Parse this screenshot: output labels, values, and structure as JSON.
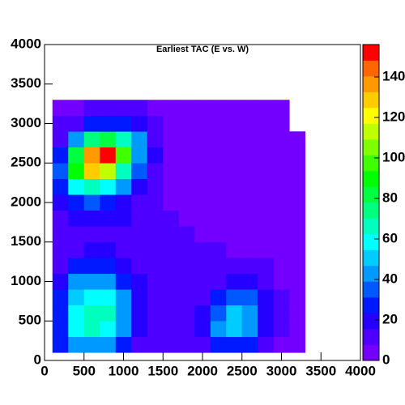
{
  "chart_data": {
    "type": "heatmap",
    "title": "Earliest TAC (E vs. W)",
    "xlim": [
      0,
      4000
    ],
    "ylim": [
      0,
      4000
    ],
    "zlim": [
      0,
      156
    ],
    "xticks": [
      0,
      500,
      1000,
      1500,
      2000,
      2500,
      3000,
      3500,
      4000
    ],
    "yticks": [
      0,
      500,
      1000,
      1500,
      2000,
      2500,
      3000,
      3500,
      4000
    ],
    "zticks": [
      0,
      20,
      40,
      60,
      80,
      100,
      120,
      140
    ],
    "palette": [
      "#7300ff",
      "#4d00ff",
      "#2600ff",
      "#0019ff",
      "#0059ff",
      "#0099ff",
      "#00ccff",
      "#00ffff",
      "#00ffbf",
      "#00ff80",
      "#00ff40",
      "#00ff00",
      "#40ff00",
      "#80ff00",
      "#bfff00",
      "#ffff00",
      "#ffcc00",
      "#ff9900",
      "#ff6600",
      "#ff0000"
    ],
    "x_bins": [
      100,
      300,
      500,
      700,
      900,
      1100,
      1300,
      1500,
      1700,
      1900,
      2100,
      2300,
      2500,
      2700,
      2900,
      3100,
      3300
    ],
    "y_bins": [
      100,
      300,
      500,
      700,
      900,
      1100,
      1300,
      1500,
      1700,
      1900,
      2100,
      2300,
      2500,
      2700,
      2900,
      3100,
      3300
    ],
    "z": [
      [
        25,
        40,
        45,
        40,
        30,
        15,
        10,
        8,
        8,
        12,
        25,
        30,
        25,
        15,
        6,
        3
      ],
      [
        30,
        55,
        65,
        60,
        45,
        20,
        12,
        9,
        10,
        20,
        40,
        50,
        40,
        20,
        8,
        3
      ],
      [
        30,
        60,
        70,
        65,
        45,
        22,
        12,
        9,
        10,
        18,
        38,
        50,
        45,
        22,
        8,
        3
      ],
      [
        28,
        50,
        60,
        55,
        40,
        20,
        12,
        10,
        10,
        14,
        25,
        35,
        32,
        18,
        8,
        3
      ],
      [
        22,
        40,
        45,
        40,
        30,
        18,
        13,
        11,
        10,
        11,
        15,
        20,
        18,
        12,
        6,
        3
      ],
      [
        15,
        25,
        28,
        25,
        20,
        15,
        13,
        12,
        10,
        10,
        10,
        10,
        9,
        8,
        5,
        2
      ],
      [
        12,
        15,
        16,
        16,
        15,
        14,
        13,
        12,
        10,
        9,
        8,
        7,
        6,
        5,
        4,
        2
      ],
      [
        12,
        14,
        15,
        15,
        15,
        14,
        13,
        11,
        9,
        7,
        6,
        5,
        4,
        3,
        3,
        2
      ],
      [
        15,
        18,
        20,
        20,
        18,
        15,
        12,
        10,
        7,
        5,
        4,
        4,
        3,
        3,
        2,
        2
      ],
      [
        20,
        30,
        35,
        30,
        22,
        15,
        10,
        7,
        5,
        3,
        3,
        3,
        2,
        2,
        2,
        1
      ],
      [
        30,
        55,
        70,
        60,
        40,
        22,
        12,
        6,
        4,
        3,
        2,
        2,
        2,
        2,
        1,
        1
      ],
      [
        35,
        90,
        125,
        110,
        70,
        35,
        15,
        6,
        3,
        2,
        2,
        1,
        2,
        1,
        1,
        1
      ],
      [
        25,
        80,
        140,
        150,
        100,
        45,
        18,
        7,
        3,
        2,
        2,
        2,
        1,
        1,
        1,
        1
      ],
      [
        15,
        40,
        75,
        85,
        70,
        40,
        15,
        6,
        3,
        2,
        2,
        1,
        2,
        1,
        1,
        1
      ],
      [
        10,
        15,
        25,
        30,
        25,
        18,
        10,
        5,
        3,
        2,
        1,
        1,
        1,
        1,
        1,
        0
      ],
      [
        5,
        6,
        8,
        10,
        10,
        8,
        6,
        4,
        2,
        1,
        1,
        1,
        1,
        1,
        1,
        0
      ]
    ]
  }
}
